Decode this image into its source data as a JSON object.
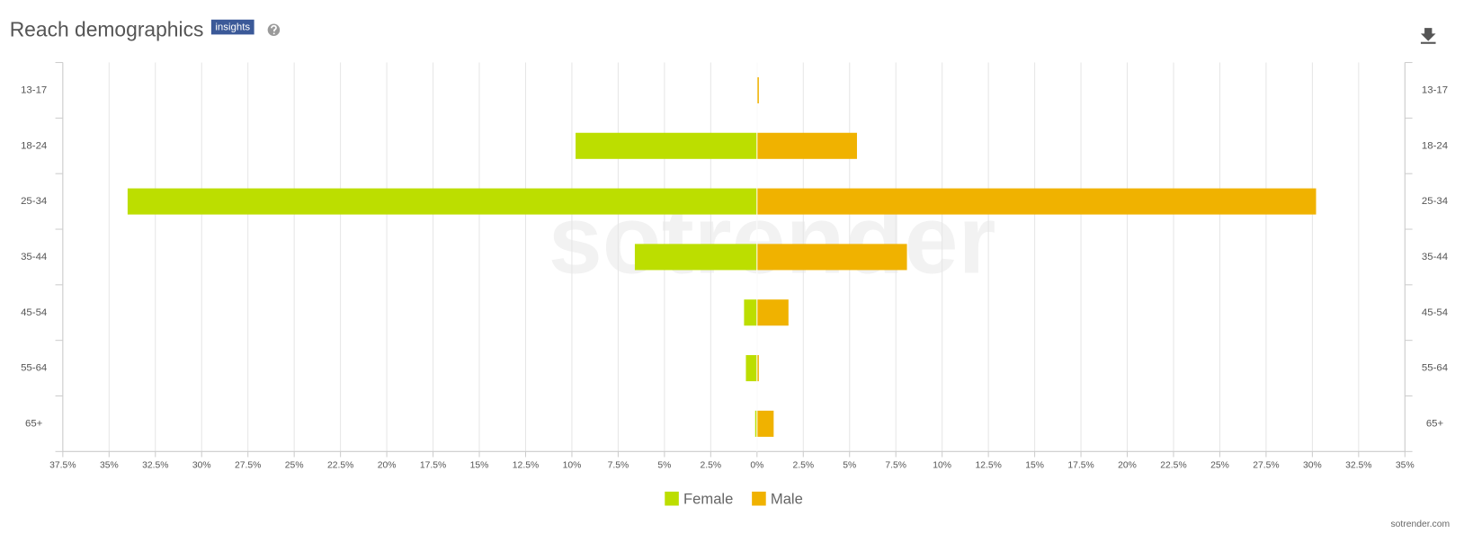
{
  "chart_data": {
    "type": "pyramid",
    "title": "Reach demographics",
    "badge": "insights",
    "watermark": "sotrender",
    "footer": "sotrender.com",
    "categories": [
      "13-17",
      "18-24",
      "25-34",
      "35-44",
      "45-54",
      "55-64",
      "65+"
    ],
    "series": [
      {
        "name": "Female",
        "color": "#bcde00",
        "values": [
          0,
          -9.8,
          -34.0,
          -6.6,
          -0.7,
          -0.6,
          -0.1
        ]
      },
      {
        "name": "Male",
        "color": "#f0b200",
        "values": [
          0.1,
          5.4,
          30.2,
          8.1,
          1.7,
          0.1,
          0.9
        ]
      }
    ],
    "xlim": [
      -37.5,
      35
    ],
    "xticks": [
      {
        "value": -37.5,
        "label": "37.5%"
      },
      {
        "value": -35,
        "label": "35%"
      },
      {
        "value": -32.5,
        "label": "32.5%"
      },
      {
        "value": -30,
        "label": "30%"
      },
      {
        "value": -27.5,
        "label": "27.5%"
      },
      {
        "value": -25,
        "label": "25%"
      },
      {
        "value": -22.5,
        "label": "22.5%"
      },
      {
        "value": -20,
        "label": "20%"
      },
      {
        "value": -17.5,
        "label": "17.5%"
      },
      {
        "value": -15,
        "label": "15%"
      },
      {
        "value": -12.5,
        "label": "12.5%"
      },
      {
        "value": -10,
        "label": "10%"
      },
      {
        "value": -7.5,
        "label": "7.5%"
      },
      {
        "value": -5,
        "label": "5%"
      },
      {
        "value": -2.5,
        "label": "2.5%"
      },
      {
        "value": 0,
        "label": "0%"
      },
      {
        "value": 2.5,
        "label": "2.5%"
      },
      {
        "value": 5,
        "label": "5%"
      },
      {
        "value": 7.5,
        "label": "7.5%"
      },
      {
        "value": 10,
        "label": "10%"
      },
      {
        "value": 12.5,
        "label": "12.5%"
      },
      {
        "value": 15,
        "label": "15%"
      },
      {
        "value": 17.5,
        "label": "17.5%"
      },
      {
        "value": 20,
        "label": "20%"
      },
      {
        "value": 22.5,
        "label": "22.5%"
      },
      {
        "value": 25,
        "label": "25%"
      },
      {
        "value": 27.5,
        "label": "27.5%"
      },
      {
        "value": 30,
        "label": "30%"
      },
      {
        "value": 32.5,
        "label": "32.5%"
      },
      {
        "value": 35,
        "label": "35%"
      }
    ],
    "grid": true
  }
}
